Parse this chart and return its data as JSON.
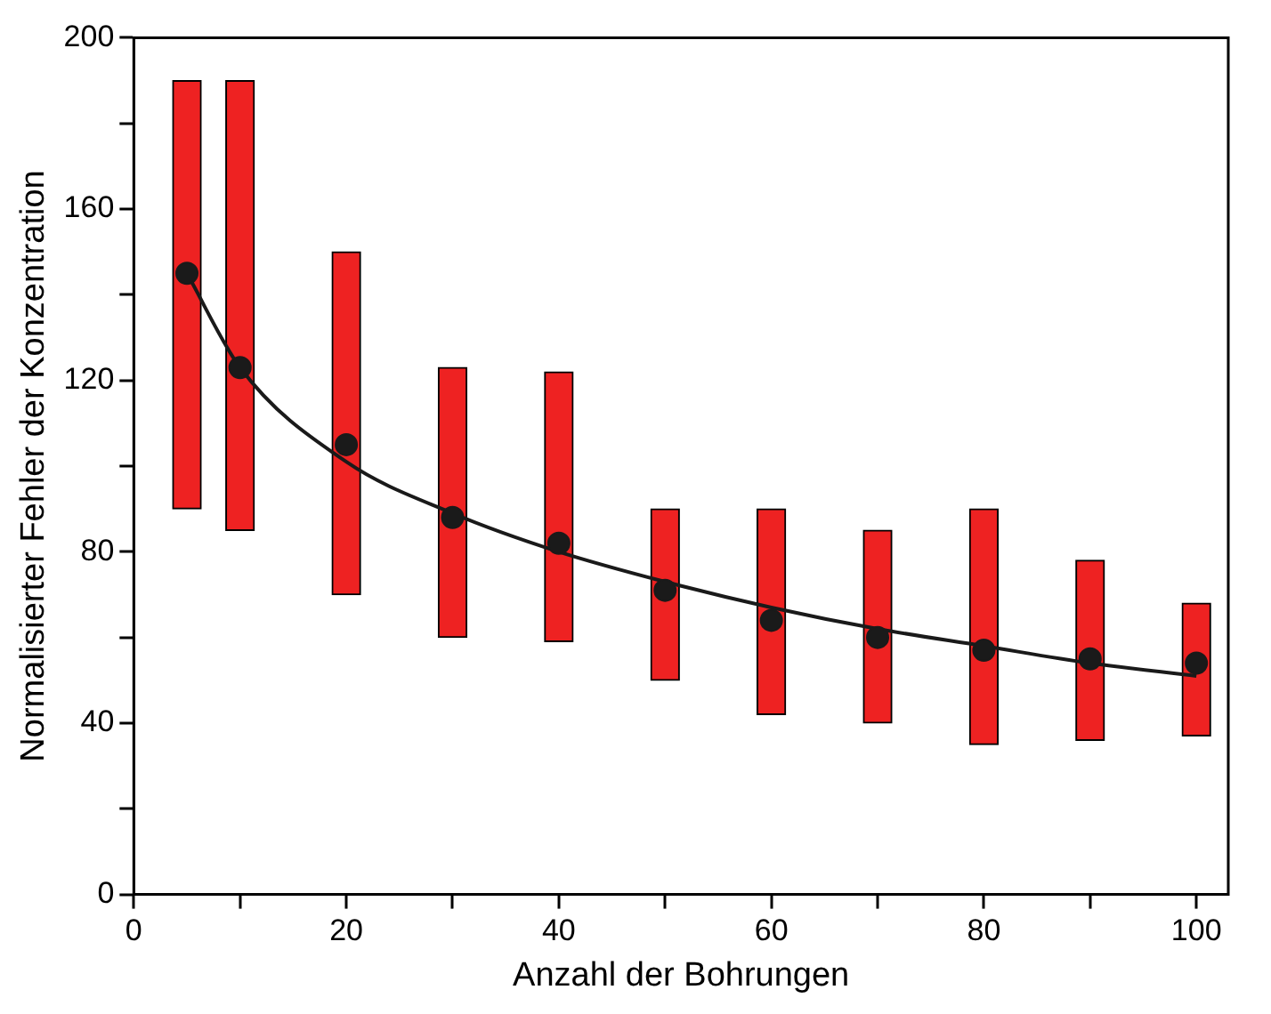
{
  "chart_data": {
    "type": "bar",
    "xlabel": "Anzahl der Bohrungen",
    "ylabel": "Normalisierter Fehler der Konzentration",
    "x": [
      5,
      10,
      20,
      30,
      40,
      50,
      60,
      70,
      80,
      90,
      100
    ],
    "xlim": [
      0,
      103
    ],
    "xticks": [
      0,
      {
        "value": 10,
        "label": null
      },
      20,
      {
        "value": 30,
        "label": null
      },
      40,
      {
        "value": 50,
        "label": null
      },
      60,
      {
        "value": 70,
        "label": null
      },
      80,
      {
        "value": 90,
        "label": null
      },
      100
    ],
    "ylim": [
      0,
      200
    ],
    "yticks": [
      0,
      {
        "value": 20,
        "label": null
      },
      40,
      {
        "value": 60,
        "label": null
      },
      80,
      {
        "value": 100,
        "label": null
      },
      120,
      {
        "value": 140,
        "label": null
      },
      160,
      {
        "value": 180,
        "label": null
      },
      200
    ],
    "grid": false,
    "legend": false,
    "series": [
      {
        "color": "#ee2222",
        "values": [
          100,
          105,
          80,
          63,
          63,
          40,
          48,
          45,
          55,
          42,
          31
        ],
        "base": [
          90,
          85,
          70,
          60,
          59,
          50,
          42,
          40,
          35,
          36,
          37
        ]
      },
      {
        "type": "scatter",
        "color": "#1a1a1a",
        "marker": "circle",
        "values": [
          145,
          123,
          105,
          88,
          82,
          71,
          64,
          60,
          57,
          55,
          54
        ]
      },
      {
        "type": "line",
        "color": "#1a1a1a",
        "values": [
          145,
          123,
          101,
          89,
          80,
          73,
          67,
          62,
          58,
          54,
          51
        ]
      }
    ]
  }
}
